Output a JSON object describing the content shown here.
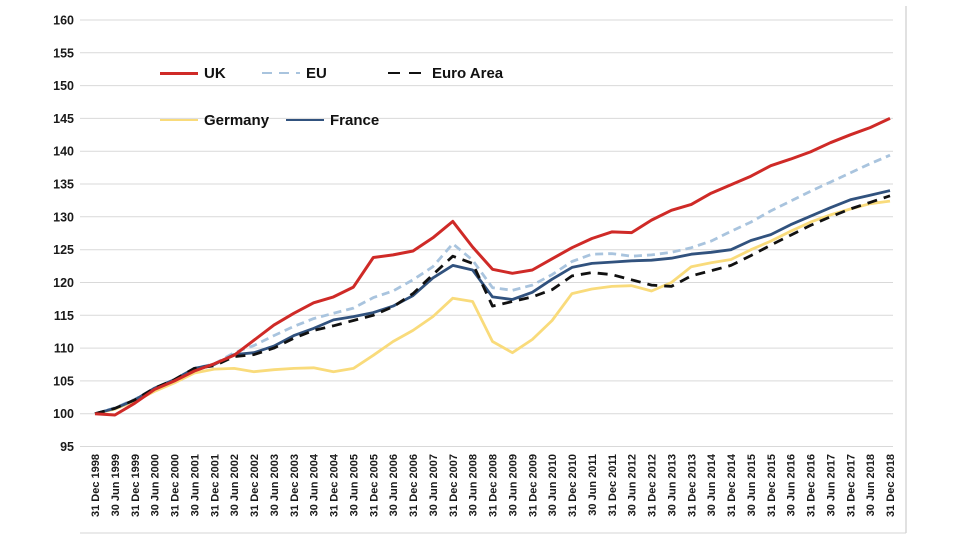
{
  "page": {
    "background": "#ffffff",
    "grid_color": "#d9d9d9",
    "border_color": "#d4d4d4",
    "label_color": "#1a1a1a"
  },
  "chart_data": {
    "type": "line",
    "title": "",
    "xlabel": "",
    "ylabel": "",
    "ylim": [
      95,
      160
    ],
    "y_tick_step": 5,
    "y_tick_labels": [
      "95",
      "100",
      "105",
      "110",
      "115",
      "120",
      "125",
      "130",
      "135",
      "140",
      "145",
      "150",
      "155",
      "160"
    ],
    "grid": "horizontal",
    "legend_position": "top-left-inside",
    "x_tick_labels": [
      "31 Dec 1998",
      "30 Jun 1999",
      "31 Dec 1999",
      "30 Jun 2000",
      "31 Dec 2000",
      "30 Jun 2001",
      "31 Dec 2001",
      "30 Jun 2002",
      "31 Dec 2002",
      "30 Jun 2003",
      "31 Dec 2003",
      "30 Jun 2004",
      "31 Dec 2004",
      "30 Jun 2005",
      "31 Dec 2005",
      "30 Jun 2006",
      "31 Dec 2006",
      "30 Jun 2007",
      "31 Dec 2007",
      "30 Jun 2008",
      "31 Dec 2008",
      "30 Jun 2009",
      "31 Dec 2009",
      "30 Jun 2010",
      "31 Dec 2010",
      "30 Jun 2011",
      "31 Dec 2011",
      "30 Jun 2012",
      "31 Dec 2012",
      "30 Jun 2013",
      "31 Dec 2013",
      "30 Jun 2014",
      "31 Dec 2014",
      "30 Jun 2015",
      "31 Dec 2015",
      "30 Jun 2016",
      "31 Dec 2016",
      "30 Jun 2017",
      "31 Dec 2017",
      "30 Jun 2018",
      "31 Dec 2018"
    ],
    "series": [
      {
        "name": "UK",
        "color": "#cf2a27",
        "style": "solid",
        "width": 3,
        "values": [
          100,
          99.8,
          101.6,
          103.7,
          105.0,
          106.5,
          107.6,
          108.9,
          111.2,
          113.5,
          115.3,
          116.9,
          117.8,
          119.3,
          123.8,
          124.2,
          124.8,
          126.8,
          129.3,
          125.4,
          122.0,
          121.4,
          121.9,
          123.6,
          125.3,
          126.7,
          127.7,
          127.6,
          129.5,
          131.0,
          131.9,
          133.6,
          134.9,
          136.2,
          137.8,
          138.8,
          139.9,
          141.3,
          142.5,
          143.6,
          145.0
        ]
      },
      {
        "name": "EU",
        "color": "#a9c4de",
        "style": "dashed",
        "width": 2.8,
        "dash": [
          8,
          5
        ],
        "values": [
          100,
          100.9,
          102.2,
          103.9,
          105.2,
          106.9,
          107.6,
          109.3,
          110.4,
          111.9,
          113.3,
          114.5,
          115.3,
          116.1,
          117.7,
          118.7,
          120.4,
          122.4,
          125.9,
          123.4,
          119.2,
          118.8,
          119.6,
          121.2,
          123.2,
          124.3,
          124.4,
          124.0,
          124.2,
          124.6,
          125.3,
          126.3,
          127.8,
          129.2,
          130.9,
          132.4,
          133.9,
          135.3,
          136.7,
          138.1,
          139.4
        ]
      },
      {
        "name": "Euro Area",
        "color": "#111111",
        "style": "dashed",
        "width": 2.8,
        "dash": [
          10,
          7
        ],
        "values": [
          100,
          100.8,
          102.1,
          103.9,
          105.2,
          106.9,
          107.3,
          108.7,
          109.0,
          110.0,
          111.5,
          112.7,
          113.4,
          114.2,
          115.0,
          116.3,
          118.3,
          121.2,
          124.0,
          122.9,
          116.4,
          117.1,
          117.8,
          118.9,
          121.0,
          121.5,
          121.2,
          120.4,
          119.6,
          119.4,
          121.0,
          121.8,
          122.6,
          124.1,
          125.7,
          127.2,
          128.7,
          130.0,
          131.2,
          132.2,
          133.2
        ]
      },
      {
        "name": "Germany",
        "color": "#f9db7b",
        "style": "solid",
        "width": 2.8,
        "values": [
          100,
          100.7,
          101.9,
          103.4,
          104.7,
          106.2,
          106.8,
          106.9,
          106.4,
          106.7,
          106.9,
          107.0,
          106.4,
          106.9,
          108.9,
          111.0,
          112.7,
          114.8,
          117.6,
          117.1,
          111.0,
          109.3,
          111.3,
          114.2,
          118.3,
          119.0,
          119.4,
          119.5,
          118.7,
          120.0,
          122.4,
          123.0,
          123.5,
          125.0,
          126.3,
          127.8,
          129.2,
          130.3,
          131.2,
          132.0,
          132.4
        ]
      },
      {
        "name": "France",
        "color": "#31527e",
        "style": "solid",
        "width": 2.8,
        "values": [
          100,
          100.8,
          102.1,
          103.9,
          105.2,
          106.9,
          107.5,
          109.0,
          109.3,
          110.3,
          111.9,
          113.0,
          114.3,
          114.8,
          115.4,
          116.4,
          118.0,
          120.7,
          122.6,
          121.9,
          117.8,
          117.4,
          118.5,
          120.5,
          122.3,
          122.9,
          123.1,
          123.3,
          123.4,
          123.7,
          124.3,
          124.6,
          125.0,
          126.4,
          127.3,
          128.8,
          130.1,
          131.4,
          132.6,
          133.3,
          134.0
        ]
      }
    ]
  }
}
